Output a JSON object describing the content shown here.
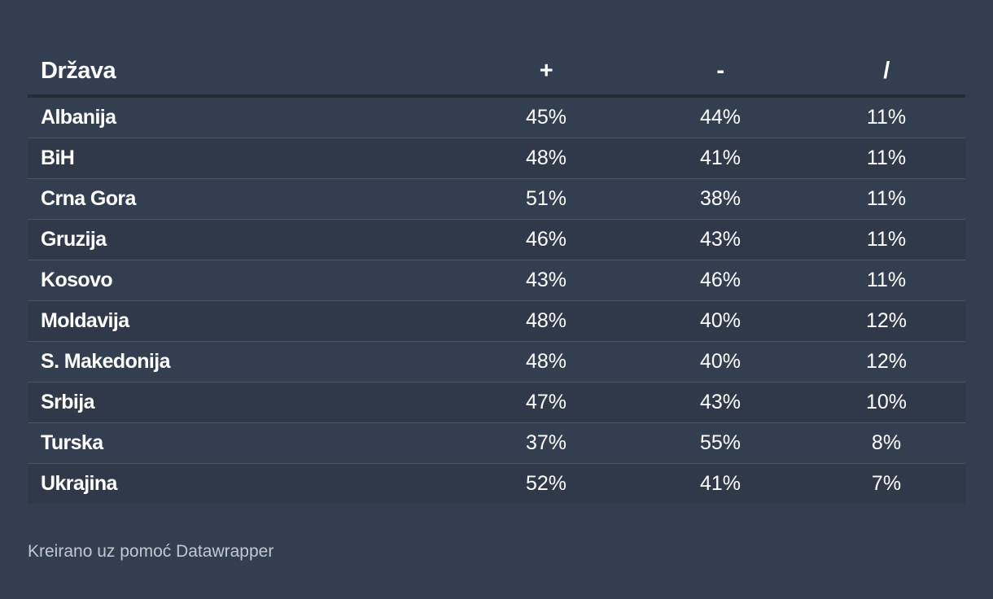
{
  "chart_data": {
    "type": "table",
    "columns": [
      "Država",
      "+",
      "-",
      "/"
    ],
    "rows": [
      {
        "country": "Albanija",
        "plus": "45%",
        "minus": "44%",
        "slash": "11%"
      },
      {
        "country": "BiH",
        "plus": "48%",
        "minus": "41%",
        "slash": "11%"
      },
      {
        "country": "Crna Gora",
        "plus": "51%",
        "minus": "38%",
        "slash": "11%"
      },
      {
        "country": "Gruzija",
        "plus": "46%",
        "minus": "43%",
        "slash": "11%"
      },
      {
        "country": "Kosovo",
        "plus": "43%",
        "minus": "46%",
        "slash": "11%"
      },
      {
        "country": "Moldavija",
        "plus": "48%",
        "minus": "40%",
        "slash": "12%"
      },
      {
        "country": "S. Makedonija",
        "plus": "48%",
        "minus": "40%",
        "slash": "12%"
      },
      {
        "country": "Srbija",
        "plus": "47%",
        "minus": "43%",
        "slash": "10%"
      },
      {
        "country": "Turska",
        "plus": "37%",
        "minus": "55%",
        "slash": "8%"
      },
      {
        "country": "Ukrajina",
        "plus": "52%",
        "minus": "41%",
        "slash": "7%"
      }
    ]
  },
  "footer": {
    "credit": "Kreirano uz pomoć Datawrapper"
  },
  "colors": {
    "background": "#333e50",
    "row_alt": "#2f394a",
    "header_rule": "#242b36",
    "row_divider": "#4a5566",
    "text": "#ffffff",
    "footer_text": "#c3c8d0"
  }
}
